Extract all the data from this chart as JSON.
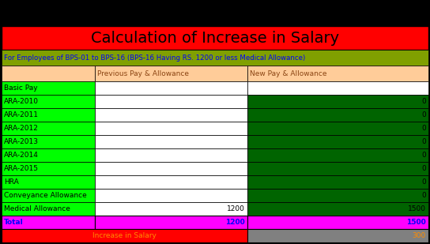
{
  "title": "Calculation of Increase in Salary",
  "subtitle": "For Employees of BPS-01 to BPS-16 (BPS-16 Having RS. 1200 or less Medical Allowance)",
  "col_headers": [
    "",
    "Previous Pay & Allowance",
    "New Pay & Allowance"
  ],
  "rows": [
    {
      "label": "Basic Pay",
      "prev": "",
      "new": ""
    },
    {
      "label": "ARA-2010",
      "prev": "",
      "new": "0"
    },
    {
      "label": "ARA-2011",
      "prev": "",
      "new": "0"
    },
    {
      "label": "ARA-2012",
      "prev": "",
      "new": "0"
    },
    {
      "label": "ARA-2013",
      "prev": "",
      "new": "0"
    },
    {
      "label": "ARA-2014",
      "prev": "",
      "new": "0"
    },
    {
      "label": "ARA-2015",
      "prev": "",
      "new": "0"
    },
    {
      "label": "HRA",
      "prev": "",
      "new": "0"
    },
    {
      "label": "Conveyance Allowance",
      "prev": "",
      "new": "0"
    },
    {
      "label": "Medical Allowance",
      "prev": "1200",
      "new": "1500"
    }
  ],
  "total_row": {
    "label": "Total",
    "prev": "1200",
    "new": "1500"
  },
  "increase_row": {
    "label": "Increase in Salary",
    "value": "300"
  },
  "title_bg": "#FF0000",
  "title_fg": "#000000",
  "subtitle_bg": "#80A000",
  "subtitle_fg": "#0000FF",
  "header_bg": "#FFCC99",
  "header_fg": "#8B4513",
  "label_col_bg_lime": "#00FF00",
  "prev_col_bg": "#FFFFFF",
  "new_col_bg_dark_green": "#006400",
  "new_col_bg_white": "#FFFFFF",
  "total_bg": "#FF00FF",
  "total_fg": "#0000FF",
  "increase_bg": "#FF0000",
  "increase_fg": "#FF8C00",
  "increase_val_bg": "#808080",
  "increase_val_fg": "#FF8C00",
  "figsize": [
    5.44,
    3.09
  ],
  "dpi": 100
}
